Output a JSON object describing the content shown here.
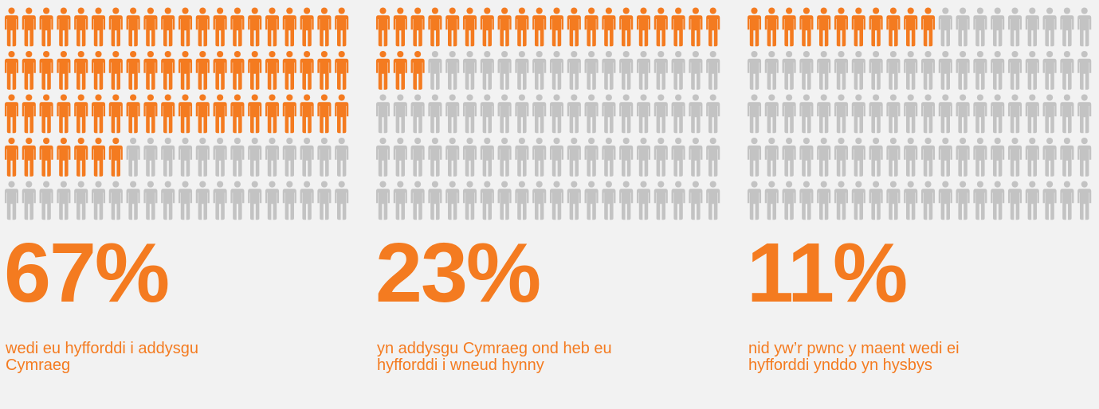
{
  "chart_data": [
    {
      "type": "pictogram",
      "values": [
        67
      ],
      "value_labels": [
        "67%"
      ],
      "caption": "wedi eu hyfforddi i addysgu Cymraeg",
      "color": "#f47b20",
      "rest_color": "#c3c3c3"
    },
    {
      "type": "pictogram",
      "values": [
        23
      ],
      "value_labels": [
        "23%"
      ],
      "caption": "yn addysgu Cymraeg ond heb eu hyfforddi i wneud hynny",
      "color": "#f47b20",
      "rest_color": "#c3c3c3"
    },
    {
      "type": "pictogram",
      "values": [
        11
      ],
      "value_labels": [
        "11%"
      ],
      "caption": "nid yw’r pwnc y maent wedi ei hyfforddi ynddo yn hysbys",
      "color": "#f47b20",
      "rest_color": "#c3c3c3"
    }
  ]
}
